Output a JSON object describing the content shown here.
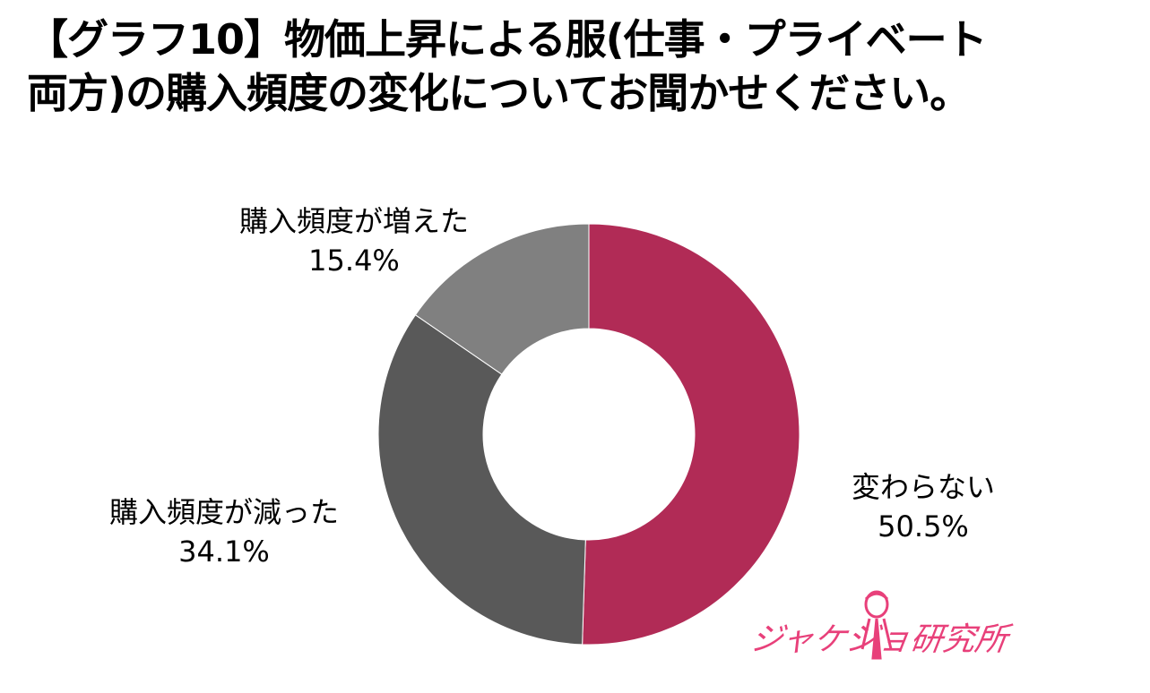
{
  "title_lines": [
    "【グラフ10】物価上昇による服(仕事・プライベート",
    "両方)の購入頻度の変化についてお聞かせください。"
  ],
  "chart_data": {
    "type": "pie",
    "donut": true,
    "categories": [
      "変わらない",
      "購入頻度が減った",
      "購入頻度が増えた"
    ],
    "values": [
      50.5,
      34.1,
      15.4
    ],
    "value_labels": [
      "50.5%",
      "34.1%",
      "15.4%"
    ],
    "colors": [
      "#b12b56",
      "#595959",
      "#808080"
    ],
    "start": "12 o'clock",
    "direction": "clockwise",
    "legend": "none"
  },
  "logo": {
    "text": "ジャケジョ研究所",
    "color": "#e8407a"
  }
}
